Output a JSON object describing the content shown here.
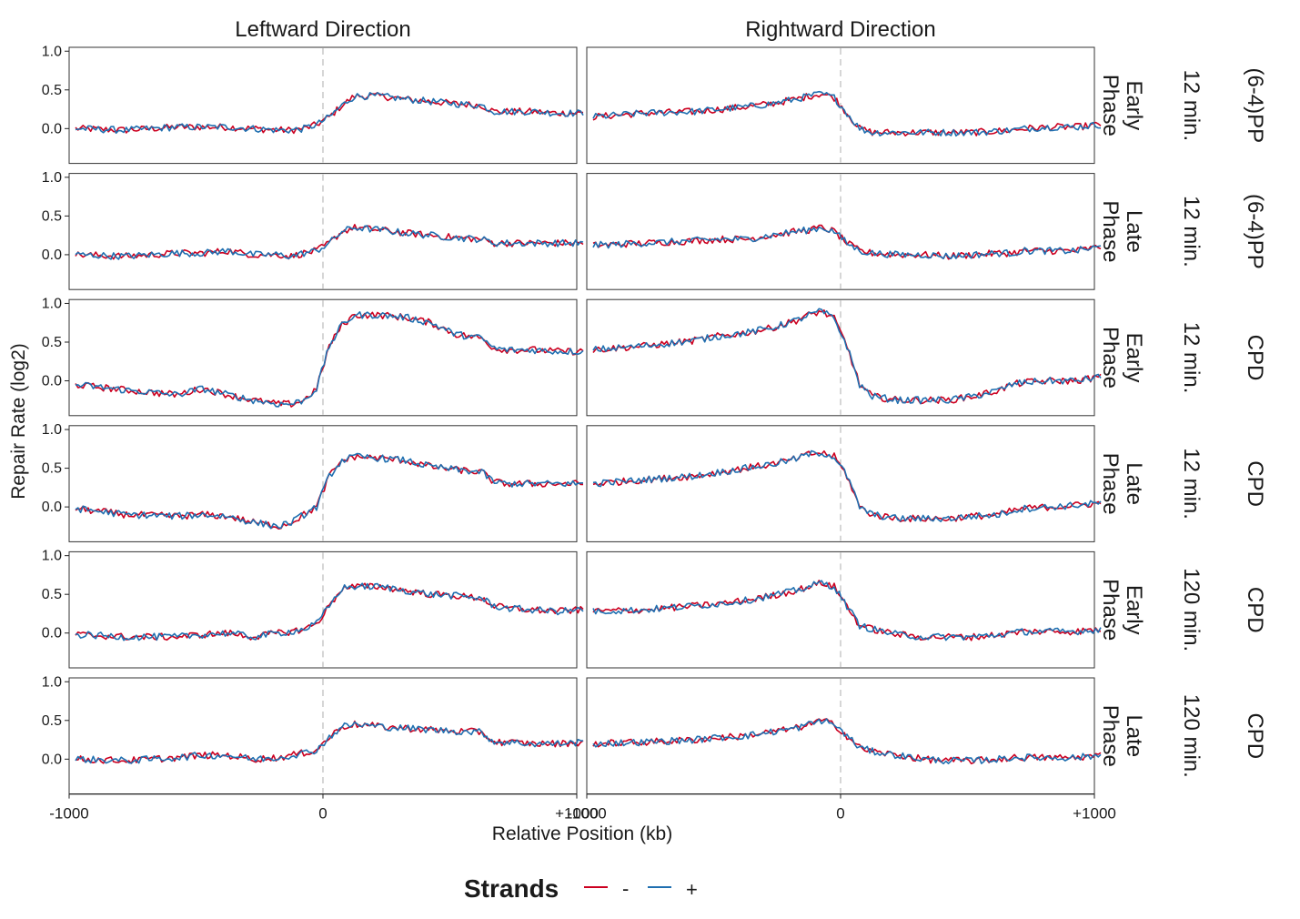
{
  "chart_data": {
    "type": "line",
    "facet_columns": [
      "Leftward Direction",
      "Rightward Direction"
    ],
    "facet_rows": [
      {
        "phase": [
          "Early",
          "Phase"
        ],
        "time": "12 min.",
        "damage": "(6-4)PP"
      },
      {
        "phase": [
          "Late",
          "Phase"
        ],
        "time": "12 min.",
        "damage": "(6-4)PP"
      },
      {
        "phase": [
          "Early",
          "Phase"
        ],
        "time": "12 min.",
        "damage": "CPD"
      },
      {
        "phase": [
          "Late",
          "Phase"
        ],
        "time": "12 min.",
        "damage": "CPD"
      },
      {
        "phase": [
          "Early",
          "Phase"
        ],
        "time": "120 min.",
        "damage": "CPD"
      },
      {
        "phase": [
          "Late",
          "Phase"
        ],
        "time": "120 min.",
        "damage": "CPD"
      }
    ],
    "xlabel": "Relative Position (kb)",
    "ylabel": "Repair Rate (log2)",
    "xlim": [
      -1000,
      1000
    ],
    "ylim": [
      -0.45,
      1.05
    ],
    "x_ticks": [
      -1000,
      0,
      1000
    ],
    "x_tick_labels": [
      "-1000",
      "0",
      "+1000"
    ],
    "y_ticks": [
      0,
      0.5,
      1
    ],
    "y_tick_labels": [
      "0.0",
      "0.5",
      "1.0"
    ],
    "vline_x": 0,
    "legend": {
      "title": "Strands",
      "position": "bottom",
      "entries": [
        {
          "label": "-",
          "color": "#cc0020"
        },
        {
          "label": "+",
          "color": "#1f6fb0"
        }
      ]
    },
    "series_names": [
      "-",
      "+"
    ],
    "shape_x": [
      -1000,
      -800,
      -600,
      -500,
      -400,
      -300,
      -200,
      -150,
      -100,
      -50,
      0,
      50,
      100,
      200,
      300,
      400,
      500,
      600,
      650,
      700,
      800,
      900,
      1000
    ],
    "panels": {
      "left": [
        [
          0.0,
          -0.02,
          0.02,
          0.02,
          0.02,
          0.0,
          -0.02,
          -0.02,
          0.0,
          0.05,
          0.15,
          0.3,
          0.42,
          0.42,
          0.38,
          0.35,
          0.32,
          0.3,
          0.22,
          0.22,
          0.22,
          0.2,
          0.2
        ],
        [
          0.0,
          -0.02,
          0.02,
          0.02,
          0.05,
          0.0,
          0.0,
          -0.02,
          0.02,
          0.05,
          0.15,
          0.3,
          0.35,
          0.32,
          0.28,
          0.25,
          0.22,
          0.2,
          0.15,
          0.15,
          0.15,
          0.15,
          0.15
        ],
        [
          -0.05,
          -0.12,
          -0.18,
          -0.1,
          -0.18,
          -0.25,
          -0.3,
          -0.3,
          -0.25,
          -0.1,
          0.45,
          0.72,
          0.85,
          0.85,
          0.82,
          0.75,
          0.6,
          0.55,
          0.42,
          0.4,
          0.4,
          0.38,
          0.38
        ],
        [
          -0.02,
          -0.1,
          -0.12,
          -0.1,
          -0.12,
          -0.2,
          -0.25,
          -0.2,
          -0.1,
          0.0,
          0.4,
          0.6,
          0.65,
          0.63,
          0.6,
          0.52,
          0.48,
          0.45,
          0.32,
          0.3,
          0.3,
          0.3,
          0.3
        ],
        [
          -0.02,
          -0.05,
          -0.05,
          -0.02,
          0.0,
          -0.05,
          0.0,
          0.02,
          0.05,
          0.12,
          0.35,
          0.58,
          0.6,
          0.6,
          0.55,
          0.5,
          0.48,
          0.45,
          0.35,
          0.32,
          0.3,
          0.28,
          0.3
        ],
        [
          0.0,
          -0.02,
          0.02,
          0.05,
          0.05,
          0.0,
          0.02,
          0.05,
          0.08,
          0.12,
          0.28,
          0.42,
          0.45,
          0.42,
          0.4,
          0.38,
          0.36,
          0.35,
          0.22,
          0.22,
          0.2,
          0.2,
          0.22
        ]
      ],
      "right": [
        [
          0.15,
          0.2,
          0.22,
          0.25,
          0.28,
          0.32,
          0.38,
          0.42,
          0.45,
          0.4,
          0.2,
          0.0,
          -0.05,
          -0.05,
          -0.05,
          -0.05,
          -0.05,
          -0.03,
          -0.02,
          0.0,
          0.02,
          0.02,
          0.05
        ],
        [
          0.12,
          0.15,
          0.18,
          0.2,
          0.2,
          0.25,
          0.3,
          0.32,
          0.35,
          0.3,
          0.15,
          0.05,
          0.02,
          0.0,
          0.0,
          -0.02,
          0.0,
          0.02,
          0.02,
          0.05,
          0.05,
          0.05,
          0.1
        ],
        [
          0.4,
          0.45,
          0.52,
          0.58,
          0.62,
          0.68,
          0.78,
          0.85,
          0.9,
          0.8,
          0.45,
          -0.05,
          -0.2,
          -0.25,
          -0.25,
          -0.25,
          -0.2,
          -0.12,
          -0.05,
          -0.02,
          0.0,
          0.0,
          0.05
        ],
        [
          0.3,
          0.35,
          0.4,
          0.45,
          0.5,
          0.55,
          0.62,
          0.68,
          0.7,
          0.65,
          0.4,
          0.0,
          -0.1,
          -0.15,
          -0.15,
          -0.15,
          -0.12,
          -0.1,
          -0.05,
          -0.02,
          0.0,
          0.02,
          0.05
        ],
        [
          0.28,
          0.3,
          0.35,
          0.38,
          0.42,
          0.48,
          0.55,
          0.6,
          0.65,
          0.6,
          0.35,
          0.1,
          0.05,
          -0.02,
          -0.05,
          -0.05,
          -0.05,
          -0.02,
          0.0,
          0.02,
          0.02,
          0.02,
          0.05
        ],
        [
          0.2,
          0.22,
          0.25,
          0.28,
          0.3,
          0.35,
          0.4,
          0.45,
          0.5,
          0.45,
          0.3,
          0.15,
          0.1,
          0.05,
          0.0,
          -0.02,
          -0.02,
          0.0,
          0.02,
          0.02,
          0.02,
          0.02,
          0.05
        ]
      ]
    }
  }
}
